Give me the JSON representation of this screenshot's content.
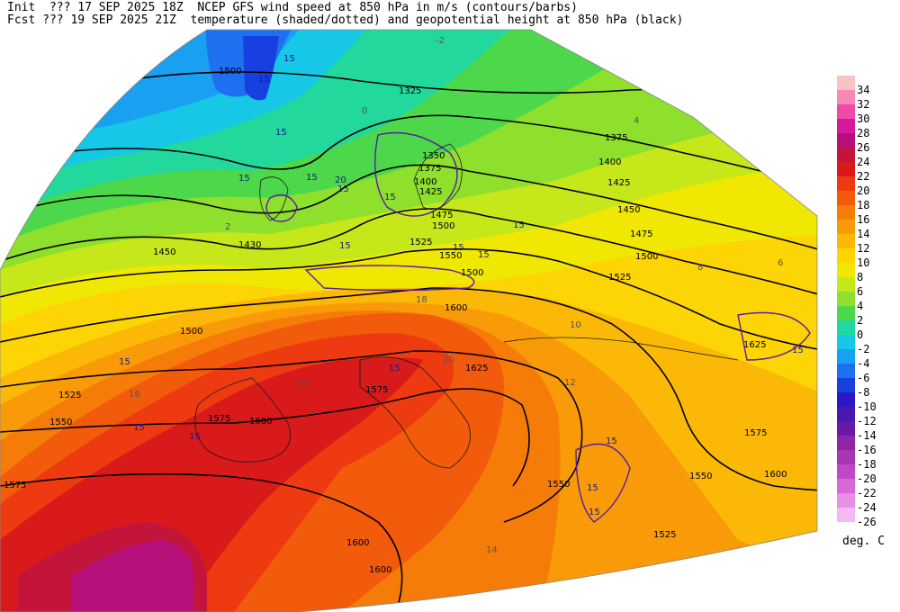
{
  "header": {
    "line1": "Init  ??? 17 SEP 2025 18Z  NCEP GFS wind speed at 850 hPa in m/s (contours/barbs)",
    "line2": "Fcst ??? 19 SEP 2025 21Z  temperature (shaded/dotted) and geopotential height at 850 hPa (black)"
  },
  "legend": {
    "units": "deg. C",
    "levels": [
      {
        "label": "34",
        "color": "#f7c3c3"
      },
      {
        "label": "32",
        "color": "#f78ab4"
      },
      {
        "label": "30",
        "color": "#ef4aa6"
      },
      {
        "label": "28",
        "color": "#d6189a"
      },
      {
        "label": "26",
        "color": "#b8107a"
      },
      {
        "label": "24",
        "color": "#c3143c"
      },
      {
        "label": "22",
        "color": "#d81a1a"
      },
      {
        "label": "20",
        "color": "#ee3a10"
      },
      {
        "label": "18",
        "color": "#f25a0c"
      },
      {
        "label": "16",
        "color": "#f67c0a"
      },
      {
        "label": "14",
        "color": "#f99b08"
      },
      {
        "label": "12",
        "color": "#fbb806"
      },
      {
        "label": "10",
        "color": "#fdd404"
      },
      {
        "label": "8",
        "color": "#f0e802"
      },
      {
        "label": "6",
        "color": "#c6e81a"
      },
      {
        "label": "4",
        "color": "#8ee02c"
      },
      {
        "label": "2",
        "color": "#4cd84a"
      },
      {
        "label": "0",
        "color": "#22d89c"
      },
      {
        "label": "-2",
        "color": "#16c8e6"
      },
      {
        "label": "-4",
        "color": "#1aa0f0"
      },
      {
        "label": "-6",
        "color": "#1e70f0"
      },
      {
        "label": "-8",
        "color": "#1840e0"
      },
      {
        "label": "-10",
        "color": "#2a18c8"
      },
      {
        "label": "-12",
        "color": "#4818b0"
      },
      {
        "label": "-14",
        "color": "#6a18a8"
      },
      {
        "label": "-16",
        "color": "#8c28a8"
      },
      {
        "label": "-18",
        "color": "#a838b0"
      },
      {
        "label": "-20",
        "color": "#c048c8"
      },
      {
        "label": "-22",
        "color": "#d868d8"
      },
      {
        "label": "-24",
        "color": "#e890e8"
      },
      {
        "label": "-26",
        "color": "#f4b8f4"
      }
    ]
  },
  "map": {
    "height_labels": [
      "1500",
      "1325",
      "1375",
      "1400",
      "1425",
      "1450",
      "1475",
      "1500",
      "1525",
      "1550",
      "1575",
      "1600",
      "1625",
      "1430",
      "1350",
      "1375",
      "1400",
      "1425",
      "1450",
      "1475",
      "1500",
      "1525",
      "1550",
      "1575",
      "1600",
      "1625",
      "1500",
      "1525",
      "1550",
      "1575",
      "1600",
      "1500",
      "1525",
      "1550",
      "1600",
      "1575",
      "1600"
    ],
    "wind_labels": [
      "15",
      "15",
      "15",
      "15",
      "15",
      "20",
      "15",
      "15",
      "15",
      "15",
      "15",
      "15",
      "15",
      "15",
      "15",
      "15",
      "15",
      "15",
      "15",
      "15"
    ],
    "temp_labels": [
      "-2",
      "0",
      "2",
      "4",
      "6",
      "8",
      "10",
      "12",
      "14",
      "16",
      "18",
      "20",
      "22"
    ]
  }
}
